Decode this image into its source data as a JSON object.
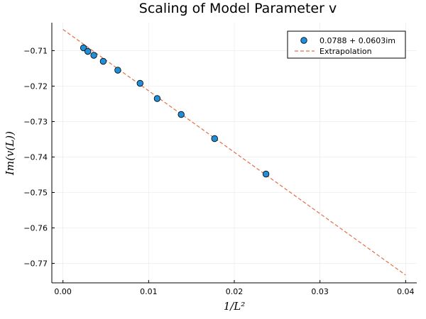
{
  "chart_data": {
    "type": "scatter",
    "title": "Scaling of Model Parameter v",
    "xlabel": "1/L²",
    "ylabel": "Im(v(L))",
    "xlim": [
      -0.0013,
      0.0413
    ],
    "ylim": [
      -0.7755,
      -0.7021
    ],
    "xticks": [
      0.0,
      0.01,
      0.02,
      0.03,
      0.04
    ],
    "xtick_labels": [
      "0.00",
      "0.01",
      "0.02",
      "0.03",
      "0.04"
    ],
    "yticks": [
      -0.71,
      -0.72,
      -0.73,
      -0.74,
      -0.75,
      -0.76,
      -0.77
    ],
    "ytick_labels": [
      "−0.71",
      "−0.72",
      "−0.73",
      "−0.74",
      "−0.75",
      "−0.76",
      "−0.77"
    ],
    "grid": true,
    "legend_position": "top-right",
    "series": [
      {
        "name": "0.0788 + 0.0603im",
        "kind": "scatter",
        "color": "#1f8fd9",
        "x": [
          0.0024,
          0.0029,
          0.0036,
          0.0047,
          0.0064,
          0.009,
          0.011,
          0.0138,
          0.0177,
          0.0237
        ],
        "y": [
          -0.7092,
          -0.7102,
          -0.7113,
          -0.713,
          -0.7155,
          -0.7192,
          -0.7235,
          -0.728,
          -0.7348,
          -0.7448
        ]
      },
      {
        "name": "Extrapolation",
        "kind": "line",
        "style": "dashed",
        "color": "#e26f46",
        "x": [
          0.0,
          0.04
        ],
        "y": [
          -0.704,
          -0.7733
        ]
      }
    ]
  }
}
